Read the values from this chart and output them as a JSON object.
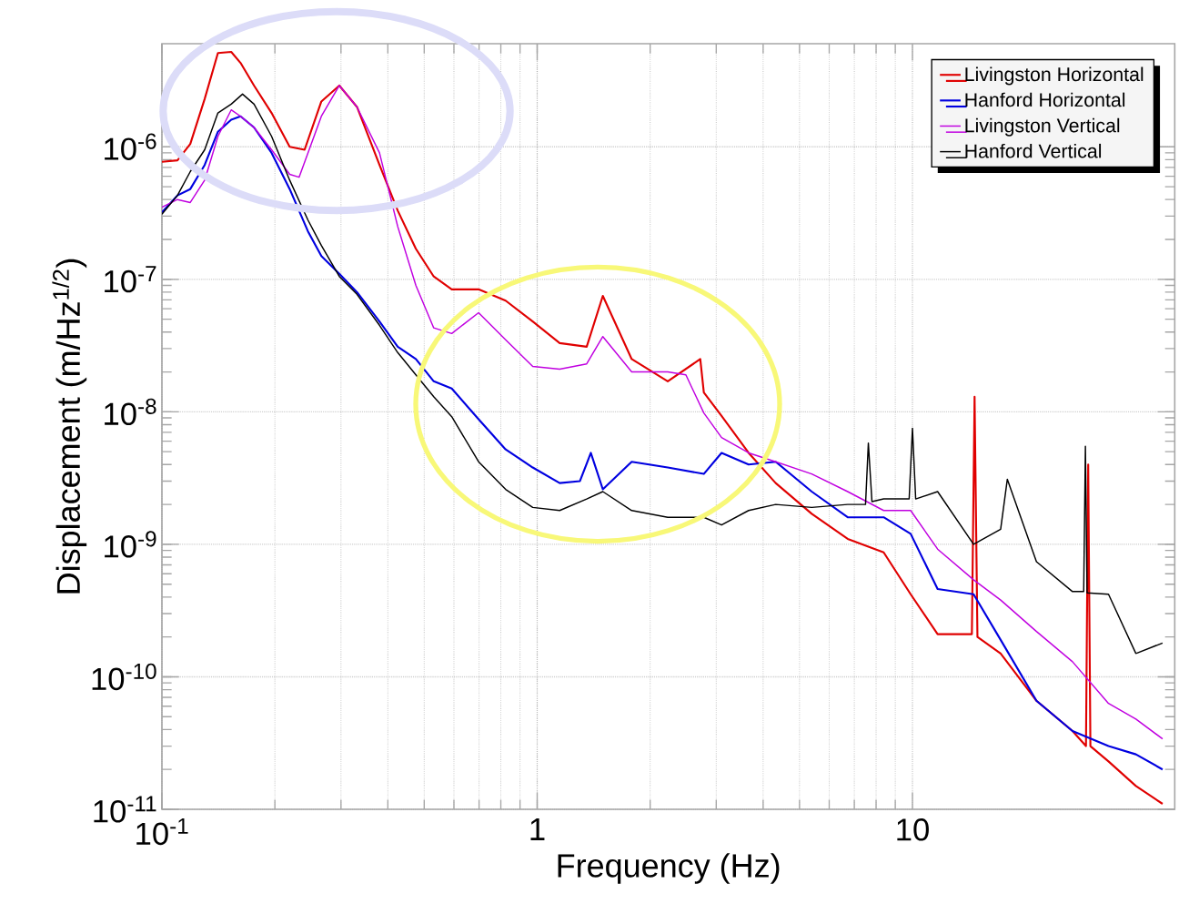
{
  "chart_data": {
    "type": "line",
    "xlabel": "Frequency (Hz)",
    "ylabel": "Displacement (m/Hz$^{1/2}$)",
    "log": "xy",
    "grid": true,
    "legend": "top right",
    "marker": "none",
    "line_style": "solid",
    "xlim": [
      0.1,
      50
    ],
    "ylim": [
      1e-11,
      6e-06
    ],
    "xticks": [
      {
        "value": 0.1,
        "label": "10$^{-1}$"
      },
      1,
      10
    ],
    "yticks": [
      {
        "value": 1e-11,
        "label": "10$^{-11}$"
      },
      {
        "value": 1e-10,
        "label": "10$^{-10}$"
      },
      {
        "value": 1e-09,
        "label": "10$^{-9}$"
      },
      {
        "value": 1e-08,
        "label": "10$^{-8}$"
      },
      {
        "value": 1e-07,
        "label": "10$^{-7}$"
      },
      {
        "value": 1e-06,
        "label": "10$^{-6}$"
      }
    ],
    "series": [
      {
        "name": "Livingston Horizontal",
        "color": "#e00000",
        "x": [
          0.1,
          0.11,
          0.119,
          0.13,
          0.141,
          0.153,
          0.162,
          0.176,
          0.196,
          0.219,
          0.24,
          0.266,
          0.297,
          0.331,
          0.38,
          0.425,
          0.475,
          0.53,
          0.592,
          0.698,
          0.824,
          0.973,
          1.148,
          1.355,
          1.496,
          1.786,
          2.228,
          2.72,
          2.78,
          3.1,
          3.66,
          4.32,
          5.39,
          6.72,
          8.38,
          9.89,
          11.67,
          14.4,
          14.64,
          14.9,
          17.18,
          21.4,
          26.7,
          29.0,
          29.4,
          29.8,
          33.3,
          39.4,
          46.4
        ],
        "values": [
          7.7e-07,
          7.9e-07,
          1.05e-06,
          2.3e-06,
          5.1e-06,
          5.2e-06,
          4.3e-06,
          2.9e-06,
          1.8e-06,
          1e-06,
          9.5e-07,
          2.2e-06,
          2.9e-06,
          2e-06,
          7.3e-07,
          3.3e-07,
          1.7e-07,
          1.05e-07,
          8.4e-08,
          8.4e-08,
          6.9e-08,
          4.8e-08,
          3.3e-08,
          3.1e-08,
          7.5e-08,
          2.5e-08,
          1.7e-08,
          2.5e-08,
          1.4e-08,
          9.3e-09,
          4.9e-09,
          2.9e-09,
          1.7e-09,
          1.1e-09,
          8.7e-10,
          4.2e-10,
          2.1e-10,
          2.1e-10,
          1.3e-08,
          2e-10,
          1.5e-10,
          6.6e-11,
          3.9e-11,
          3e-11,
          4e-09,
          3e-11,
          2.3e-11,
          1.5e-11,
          1.1e-11
        ]
      },
      {
        "name": "Hanford Horizontal",
        "color": "#0000e0",
        "x": [
          0.1,
          0.11,
          0.119,
          0.13,
          0.141,
          0.153,
          0.162,
          0.176,
          0.196,
          0.219,
          0.245,
          0.266,
          0.297,
          0.331,
          0.38,
          0.425,
          0.475,
          0.53,
          0.592,
          0.698,
          0.824,
          0.973,
          1.148,
          1.3,
          1.39,
          1.496,
          1.786,
          2.228,
          2.78,
          3.1,
          3.66,
          4.32,
          5.39,
          6.72,
          8.38,
          9.89,
          11.67,
          14.55,
          17.18,
          21.4,
          26.7,
          33.3,
          39.4,
          46.4
        ],
        "values": [
          3.2e-07,
          4.3e-07,
          4.8e-07,
          7.3e-07,
          1.3e-06,
          1.6e-06,
          1.7e-06,
          1.4e-06,
          9e-07,
          4.8e-07,
          2.3e-07,
          1.5e-07,
          1.1e-07,
          8e-08,
          4.8e-08,
          3.1e-08,
          2.5e-08,
          1.7e-08,
          1.5e-08,
          8.8e-09,
          5.2e-09,
          3.8e-09,
          2.9e-09,
          3e-09,
          4.9e-09,
          2.6e-09,
          4.2e-09,
          3.8e-09,
          3.4e-09,
          4.9e-09,
          4e-09,
          4.2e-09,
          2.5e-09,
          1.6e-09,
          1.6e-09,
          1.2e-09,
          4.6e-10,
          4.2e-10,
          1.9e-10,
          6.6e-11,
          3.9e-11,
          3e-11,
          2.6e-11,
          2e-11
        ]
      },
      {
        "name": "Livingston Vertical",
        "color": "#c000e0",
        "x": [
          0.1,
          0.11,
          0.119,
          0.13,
          0.141,
          0.153,
          0.162,
          0.176,
          0.196,
          0.219,
          0.232,
          0.266,
          0.297,
          0.331,
          0.38,
          0.425,
          0.475,
          0.53,
          0.592,
          0.698,
          0.824,
          0.973,
          1.148,
          1.355,
          1.496,
          1.786,
          2.228,
          2.49,
          2.78,
          3.1,
          3.66,
          4.32,
          5.39,
          6.72,
          8.38,
          9.89,
          11.67,
          14.55,
          17.18,
          21.4,
          26.7,
          33.3,
          39.4,
          46.4
        ],
        "values": [
          3.5e-07,
          4e-07,
          3.8e-07,
          5.6e-07,
          1.2e-06,
          1.9e-06,
          1.7e-06,
          1.4e-06,
          9.5e-07,
          6.2e-07,
          5.9e-07,
          1.7e-06,
          2.9e-06,
          2e-06,
          9e-07,
          2.5e-07,
          9e-08,
          4.3e-08,
          3.9e-08,
          5.6e-08,
          3.5e-08,
          2.2e-08,
          2.1e-08,
          2.3e-08,
          3.7e-08,
          2e-08,
          2e-08,
          1.9e-08,
          9.8e-09,
          6.4e-09,
          4.9e-09,
          4.2e-09,
          3.4e-09,
          2.5e-09,
          1.8e-09,
          1.8e-09,
          9.2e-10,
          5.4e-10,
          3.8e-10,
          2.2e-10,
          1.3e-10,
          6.3e-11,
          4.8e-11,
          3.4e-11
        ]
      },
      {
        "name": "Hanford Vertical",
        "color": "#000000",
        "x": [
          0.1,
          0.11,
          0.119,
          0.13,
          0.141,
          0.153,
          0.164,
          0.176,
          0.196,
          0.219,
          0.245,
          0.266,
          0.297,
          0.331,
          0.38,
          0.425,
          0.475,
          0.53,
          0.592,
          0.698,
          0.824,
          0.973,
          1.148,
          1.355,
          1.496,
          1.786,
          2.228,
          2.78,
          3.1,
          3.66,
          4.32,
          5.39,
          6.72,
          7.5,
          7.63,
          7.8,
          8.38,
          9.8,
          10.0,
          10.2,
          11.67,
          14.55,
          17.18,
          17.9,
          21.4,
          26.7,
          28.6,
          28.9,
          29.2,
          33.3,
          39.4,
          46.4
        ],
        "values": [
          3.1e-07,
          4.3e-07,
          6.5e-07,
          9.5e-07,
          1.8e-06,
          2.1e-06,
          2.5e-06,
          2.1e-06,
          1.2e-06,
          5.6e-07,
          2.8e-07,
          1.8e-07,
          1.05e-07,
          7.7e-08,
          4.5e-08,
          2.8e-08,
          1.9e-08,
          1.3e-08,
          9.2e-09,
          4.2e-09,
          2.6e-09,
          1.9e-09,
          1.8e-09,
          2.2e-09,
          2.5e-09,
          1.8e-09,
          1.6e-09,
          1.6e-09,
          1.4e-09,
          1.8e-09,
          2e-09,
          1.9e-09,
          2e-09,
          2e-09,
          5.8e-09,
          2.1e-09,
          2.2e-09,
          2.2e-09,
          7.5e-09,
          2.2e-09,
          2.5e-09,
          1e-09,
          1.3e-09,
          3.1e-09,
          7.4e-10,
          4.4e-10,
          4.4e-10,
          5.5e-09,
          4.3e-10,
          4.2e-10,
          1.5e-10,
          1.8e-10
        ]
      }
    ]
  }
}
